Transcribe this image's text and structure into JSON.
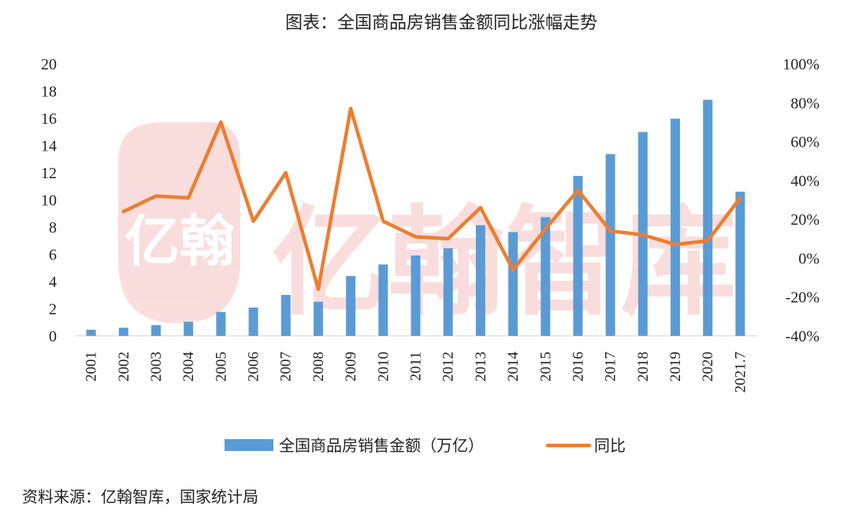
{
  "chart_data": {
    "type": "bar+line",
    "title": "图表：全国商品房销售金额同比涨幅走势",
    "categories": [
      "2001",
      "2002",
      "2003",
      "2004",
      "2005",
      "2006",
      "2007",
      "2008",
      "2009",
      "2010",
      "2011",
      "2012",
      "2013",
      "2014",
      "2015",
      "2016",
      "2017",
      "2018",
      "2019",
      "2020",
      "2021.7"
    ],
    "series": [
      {
        "name": "全国商品房销售金额（万亿）",
        "type": "bar",
        "axis": "left",
        "color": "#5B9BD5",
        "values": [
          0.45,
          0.6,
          0.79,
          1.04,
          1.76,
          2.08,
          3.01,
          2.51,
          4.4,
          5.25,
          5.91,
          6.45,
          8.14,
          7.63,
          8.73,
          11.76,
          13.37,
          14.99,
          15.97,
          17.36,
          10.6
        ]
      },
      {
        "name": "同比",
        "type": "line",
        "axis": "right",
        "color": "#ED7D31",
        "values": [
          null,
          24,
          32,
          31,
          70,
          19,
          44,
          -16,
          77,
          19,
          11,
          10,
          26,
          -6,
          15,
          35,
          14,
          12,
          7,
          9,
          31
        ]
      }
    ],
    "y_left": {
      "min": 0,
      "max": 20,
      "step": 2,
      "ticks": [
        "0",
        "2",
        "4",
        "6",
        "8",
        "10",
        "12",
        "14",
        "16",
        "18",
        "20"
      ]
    },
    "y_right": {
      "min": -40,
      "max": 100,
      "step": 20,
      "ticks": [
        "-40%",
        "-20%",
        "0%",
        "20%",
        "40%",
        "60%",
        "80%",
        "100%"
      ]
    },
    "legend_position": "bottom-center",
    "grid": false
  },
  "watermark": {
    "text": "亿翰智库",
    "logo_text": "亿翰"
  },
  "source": "资料来源：亿翰智库，国家统计局"
}
